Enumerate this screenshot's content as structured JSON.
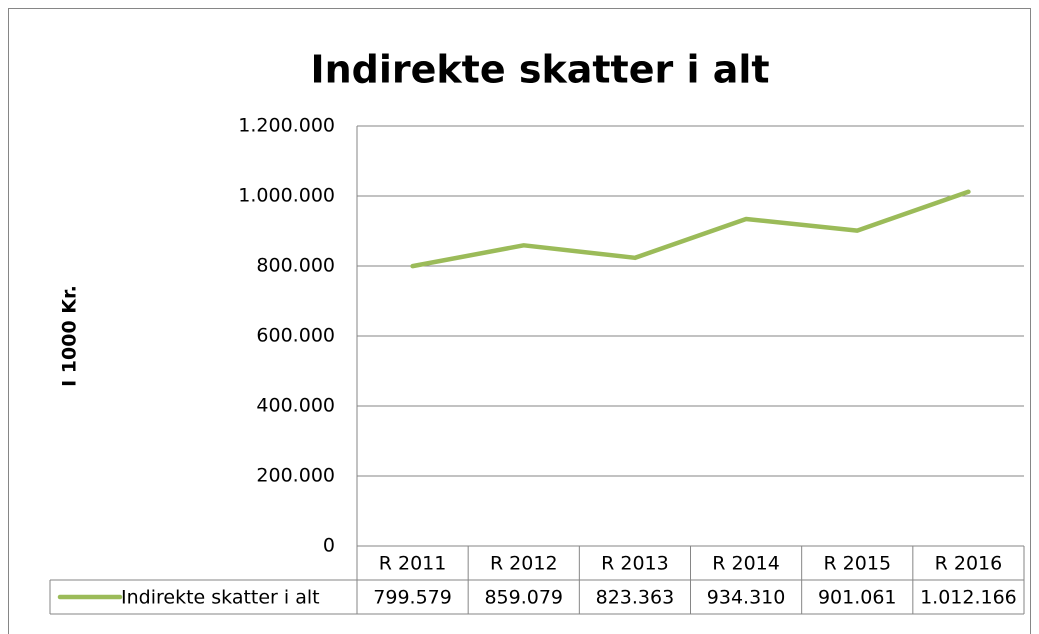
{
  "chart_data": {
    "type": "line",
    "title": "Indirekte skatter i alt",
    "y_label": "I 1000 Kr.",
    "categories": [
      "R 2011",
      "R 2012",
      "R 2013",
      "R 2014",
      "R 2015",
      "R 2016"
    ],
    "series": [
      {
        "name": "Indirekte skatter i alt",
        "color": "#9bbb59",
        "values": [
          799579,
          859079,
          823363,
          934310,
          901061,
          1012166
        ],
        "value_labels": [
          "799.579",
          "859.079",
          "823.363",
          "934.310",
          "901.061",
          "1.012.166"
        ]
      }
    ],
    "ylim": [
      0,
      1200000
    ],
    "yticks": [
      0,
      {
        "value": 200000,
        "label": "200.000"
      },
      {
        "value": 400000,
        "label": "400.000"
      },
      {
        "value": 600000,
        "label": "600.000"
      },
      {
        "value": 800000,
        "label": "800.000"
      },
      {
        "value": 1000000,
        "label": "1.000.000"
      },
      {
        "value": 1200000,
        "label": "1.200.000"
      }
    ],
    "grid": true
  }
}
